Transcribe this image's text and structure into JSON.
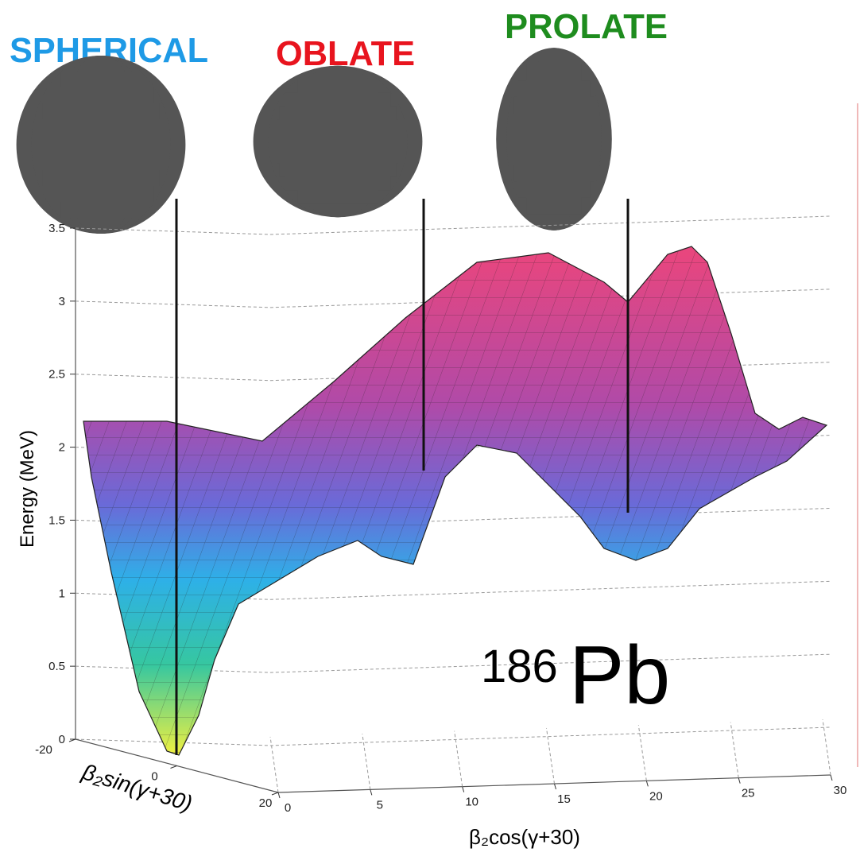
{
  "chart_data": {
    "type": "surface",
    "shape_labels": [
      {
        "text": "SPHERICAL",
        "color": "#1e9ae6"
      },
      {
        "text": "OBLATE",
        "color": "#e8141e"
      },
      {
        "text": "PROLATE",
        "color": "#1e8c1e"
      }
    ],
    "nucleus": {
      "mass_number": "186",
      "symbol": "Pb"
    },
    "zlabel": "Energy (MeV)",
    "xlabel": "β₂cos(γ+30)",
    "ylabel": "β₂sin(γ+30)",
    "zlim": [
      0,
      3.5
    ],
    "zticks": [
      0,
      0.5,
      1,
      1.5,
      2,
      2.5,
      3,
      3.5
    ],
    "xlim": [
      0,
      30
    ],
    "xticks": [
      0,
      5,
      10,
      15,
      20,
      25,
      30
    ],
    "ylim": [
      -20,
      20
    ],
    "yticks": [
      -20,
      0,
      20
    ],
    "grid": true
  }
}
